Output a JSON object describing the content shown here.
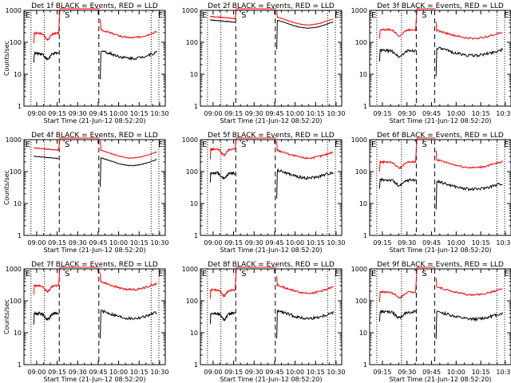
{
  "chart_data": [
    {
      "type": "line",
      "title": "Det 1f BLACK = Events, RED = LLD",
      "xlabel": "Start Time (21-Jun-12 08:52:20)",
      "ylabel": "Counts/sec",
      "x_tick_labels": [
        "09:00",
        "09:15",
        "09:30",
        "09:45",
        "10:00",
        "10:15",
        "10:30"
      ],
      "y_tick_labels": [
        "1",
        "10",
        "100",
        "1000"
      ],
      "ylim": [
        1,
        1000
      ],
      "yscale": "log",
      "markers": {
        "left": "E",
        "mid": "S",
        "right": "E"
      },
      "series": [
        {
          "color": "#ff0000",
          "level_left": 190,
          "level_right": 200,
          "left_shape": "dip"
        },
        {
          "color": "#000000",
          "level_left": 45,
          "level_right": 45,
          "left_shape": "dip"
        }
      ]
    },
    {
      "type": "line",
      "title": "Det 2f BLACK = Events, RED = LLD",
      "xlabel": "Start Time (21-Jun-12 08:52:20)",
      "ylabel": "",
      "x_tick_labels": [
        "09:00",
        "09:15",
        "09:30",
        "09:45",
        "10:00",
        "10:15",
        "10:30"
      ],
      "y_tick_labels": [
        "1",
        "10",
        "100",
        "1000"
      ],
      "ylim": [
        1,
        1000
      ],
      "yscale": "log",
      "markers": {
        "left": "E",
        "mid": "S",
        "right": "E"
      },
      "series": [
        {
          "color": "#ff0000",
          "level_left": 650,
          "level_right": 500,
          "left_shape": "smooth"
        },
        {
          "color": "#000000",
          "level_left": 500,
          "level_right": 400,
          "left_shape": "smooth"
        }
      ]
    },
    {
      "type": "line",
      "title": "Det 3f BLACK = Events, RED = LLD",
      "xlabel": "Start Time (21-Jun-12 08:52:20)",
      "ylabel": "",
      "x_tick_labels": [
        "09:15",
        "09:30",
        "09:45",
        "10:00",
        "10:15",
        "10:30"
      ],
      "y_tick_labels": [
        "1",
        "10",
        "100",
        "1000"
      ],
      "ylim": [
        1,
        1000
      ],
      "yscale": "log",
      "markers": {
        "left": "E",
        "mid": "S",
        "right": "E"
      },
      "series": [
        {
          "color": "#ff0000",
          "level_left": 250,
          "level_right": 190,
          "left_shape": "dip"
        },
        {
          "color": "#000000",
          "level_left": 55,
          "level_right": 55,
          "left_shape": "dip"
        }
      ]
    },
    {
      "type": "line",
      "title": "Det 4f BLACK = Events, RED = LLD",
      "xlabel": "Start Time (21-Jun-12 08:52:20)",
      "ylabel": "Counts/sec",
      "x_tick_labels": [
        "09:00",
        "09:15",
        "09:30",
        "09:45",
        "10:00",
        "10:15",
        "10:30"
      ],
      "y_tick_labels": [
        "1",
        "10",
        "100",
        "1000"
      ],
      "ylim": [
        1,
        1000
      ],
      "yscale": "log",
      "markers": {
        "left": "E",
        "mid": "S",
        "right": "E"
      },
      "series": [
        {
          "color": "#ff0000",
          "level_left": 550,
          "level_right": 380,
          "left_shape": "smooth"
        },
        {
          "color": "#000000",
          "level_left": 300,
          "level_right": 220,
          "left_shape": "smooth"
        }
      ]
    },
    {
      "type": "line",
      "title": "Det 5f BLACK = Events, RED = LLD",
      "xlabel": "Start Time (21-Jun-12 08:52:20)",
      "ylabel": "",
      "x_tick_labels": [
        "09:00",
        "09:15",
        "09:30",
        "09:45",
        "10:00",
        "10:15",
        "10:30"
      ],
      "y_tick_labels": [
        "1",
        "10",
        "100",
        "1000"
      ],
      "ylim": [
        1,
        1000
      ],
      "yscale": "log",
      "markers": {
        "left": "E",
        "mid": "S",
        "right": "E"
      },
      "series": [
        {
          "color": "#ff0000",
          "level_left": 500,
          "level_right": 380,
          "left_shape": "dip"
        },
        {
          "color": "#000000",
          "level_left": 90,
          "level_right": 90,
          "left_shape": "dip"
        }
      ]
    },
    {
      "type": "line",
      "title": "Det 6f BLACK = Events, RED = LLD",
      "xlabel": "Start Time (21-Jun-12 08:52:20)",
      "ylabel": "",
      "x_tick_labels": [
        "09:15",
        "09:30",
        "09:45",
        "10:00",
        "10:15",
        "10:30"
      ],
      "y_tick_labels": [
        "1",
        "10",
        "100",
        "1000"
      ],
      "ylim": [
        1,
        1000
      ],
      "yscale": "log",
      "markers": {
        "left": "E",
        "mid": "S",
        "right": "E"
      },
      "series": [
        {
          "color": "#ff0000",
          "level_left": 200,
          "level_right": 190,
          "left_shape": "dip"
        },
        {
          "color": "#000000",
          "level_left": 55,
          "level_right": 40,
          "left_shape": "dip"
        }
      ]
    },
    {
      "type": "line",
      "title": "Det 7f BLACK = Events, RED = LLD",
      "xlabel": "Start Time (21-Jun-12 08:52:20)",
      "ylabel": "Counts/sec",
      "x_tick_labels": [
        "09:00",
        "09:15",
        "09:30",
        "09:45",
        "10:00",
        "10:15",
        "10:30"
      ],
      "y_tick_labels": [
        "1",
        "10",
        "100",
        "1000"
      ],
      "ylim": [
        1,
        1000
      ],
      "yscale": "log",
      "markers": {
        "left": "E",
        "mid": "S",
        "right": "E"
      },
      "series": [
        {
          "color": "#ff0000",
          "level_left": 300,
          "level_right": 320,
          "left_shape": "dip"
        },
        {
          "color": "#000000",
          "level_left": 40,
          "level_right": 40,
          "left_shape": "dip"
        }
      ]
    },
    {
      "type": "line",
      "title": "Det 8f BLACK = Events, RED = LLD",
      "xlabel": "Start Time (21-Jun-12 08:52:20)",
      "ylabel": "",
      "x_tick_labels": [
        "09:00",
        "09:15",
        "09:30",
        "09:45",
        "10:00",
        "10:15",
        "10:30"
      ],
      "y_tick_labels": [
        "1",
        "10",
        "100",
        "1000"
      ],
      "ylim": [
        1,
        1000
      ],
      "yscale": "log",
      "markers": {
        "left": "E",
        "mid": "S",
        "right": "E"
      },
      "series": [
        {
          "color": "#ff0000",
          "level_left": 220,
          "level_right": 250,
          "left_shape": "dip"
        },
        {
          "color": "#000000",
          "level_left": 40,
          "level_right": 40,
          "left_shape": "dip"
        }
      ]
    },
    {
      "type": "line",
      "title": "Det 9f BLACK = Events, RED = LLD",
      "xlabel": "Start Time (21-Jun-12 08:52:20)",
      "ylabel": "",
      "x_tick_labels": [
        "09:15",
        "09:30",
        "09:45",
        "10:00",
        "10:15",
        "10:30"
      ],
      "y_tick_labels": [
        "1",
        "10",
        "100",
        "1000"
      ],
      "ylim": [
        1,
        1000
      ],
      "yscale": "log",
      "markers": {
        "left": "E",
        "mid": "S",
        "right": "E"
      },
      "series": [
        {
          "color": "#ff0000",
          "level_left": 190,
          "level_right": 220,
          "left_shape": "dip"
        },
        {
          "color": "#000000",
          "level_left": 45,
          "level_right": 38,
          "left_shape": "dip"
        }
      ]
    }
  ]
}
